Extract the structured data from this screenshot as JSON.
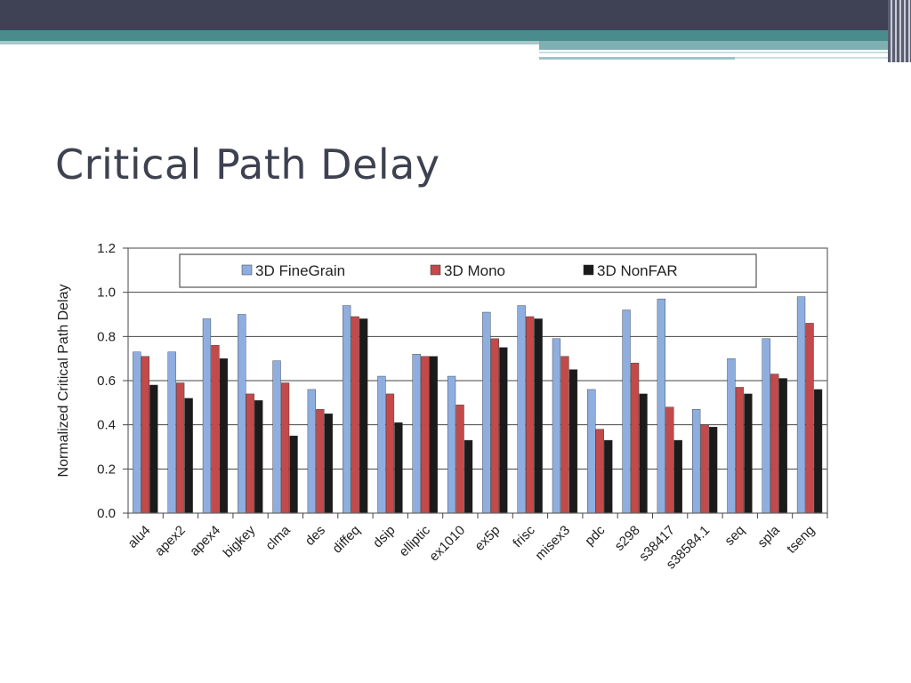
{
  "slide": {
    "title": "Critical Path Delay"
  },
  "chart_data": {
    "type": "bar",
    "title": "",
    "xlabel": "",
    "ylabel": "Normalized Critical Path Delay",
    "ylim": [
      0,
      1.2
    ],
    "yticks": [
      0,
      0.2,
      0.4,
      0.6,
      0.8,
      1.0,
      1.2
    ],
    "ytick_labels": [
      "0.0",
      "0.2",
      "0.4",
      "0.6",
      "0.8",
      "1.0",
      "1.2"
    ],
    "grid": true,
    "legend_position": "top",
    "categories": [
      "alu4",
      "apex2",
      "apex4",
      "bigkey",
      "clma",
      "des",
      "diffeq",
      "dsip",
      "elliptic",
      "ex1010",
      "ex5p",
      "frisc",
      "misex3",
      "pdc",
      "s298",
      "s38417",
      "s38584.1",
      "seq",
      "spla",
      "tseng"
    ],
    "series": [
      {
        "name": "3D FineGrain",
        "color": "#8eaee0",
        "values": [
          0.73,
          0.73,
          0.88,
          0.9,
          0.69,
          0.56,
          0.94,
          0.62,
          0.72,
          0.62,
          0.91,
          0.94,
          0.79,
          0.56,
          0.92,
          0.97,
          0.47,
          0.7,
          0.79,
          0.98
        ]
      },
      {
        "name": "3D Mono",
        "color": "#c24a4a",
        "values": [
          0.71,
          0.59,
          0.76,
          0.54,
          0.59,
          0.47,
          0.89,
          0.54,
          0.71,
          0.49,
          0.79,
          0.89,
          0.71,
          0.38,
          0.68,
          0.48,
          0.4,
          0.57,
          0.63,
          0.86
        ]
      },
      {
        "name": "3D NonFAR",
        "color": "#1b1b1b",
        "values": [
          0.58,
          0.52,
          0.7,
          0.51,
          0.35,
          0.45,
          0.88,
          0.41,
          0.71,
          0.33,
          0.75,
          0.88,
          0.65,
          0.33,
          0.54,
          0.33,
          0.39,
          0.54,
          0.61,
          0.56
        ]
      }
    ]
  }
}
